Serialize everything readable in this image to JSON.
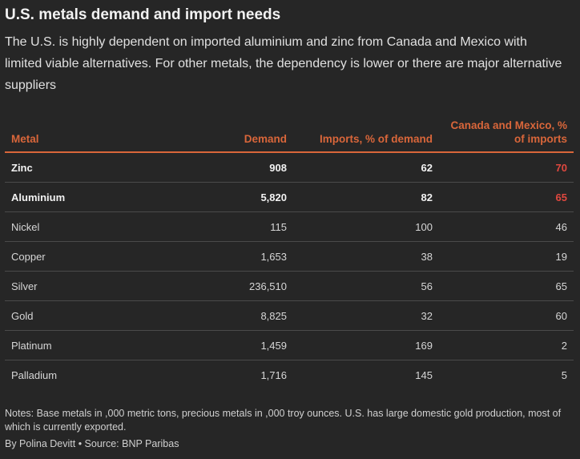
{
  "title": "U.S. metals demand and import needs",
  "subtitle": "The U.S. is highly dependent on imported aluminium and zinc from Canada and Mexico with limited viable alternatives. For other metals, the dependency is lower or there are major alternative suppliers",
  "chart_data": {
    "type": "table",
    "columns": [
      "Metal",
      "Demand",
      "Imports, % of demand",
      "Canada and Mexico, % of imports"
    ],
    "rows": [
      {
        "metal": "Zinc",
        "demand": "908",
        "imports": "62",
        "share": "70",
        "highlight": true
      },
      {
        "metal": "Aluminium",
        "demand": "5,820",
        "imports": "82",
        "share": "65",
        "highlight": true
      },
      {
        "metal": "Nickel",
        "demand": "115",
        "imports": "100",
        "share": "46",
        "highlight": false
      },
      {
        "metal": "Copper",
        "demand": "1,653",
        "imports": "38",
        "share": "19",
        "highlight": false
      },
      {
        "metal": "Silver",
        "demand": "236,510",
        "imports": "56",
        "share": "65",
        "highlight": false
      },
      {
        "metal": "Gold",
        "demand": "8,825",
        "imports": "32",
        "share": "60",
        "highlight": false
      },
      {
        "metal": "Platinum",
        "demand": "1,459",
        "imports": "169",
        "share": "2",
        "highlight": false
      },
      {
        "metal": "Palladium",
        "demand": "1,716",
        "imports": "145",
        "share": "5",
        "highlight": false
      }
    ]
  },
  "notes": "Notes: Base metals in ,000 metric tons, precious metals in ,000 troy ounces. U.S. has large domestic gold production, most of which is currently exported.",
  "source": "By Polina Devitt • Source: BNP Paribas",
  "colors": {
    "header": "#d9663a",
    "highlight_value": "#e0483f",
    "background": "#262626"
  }
}
